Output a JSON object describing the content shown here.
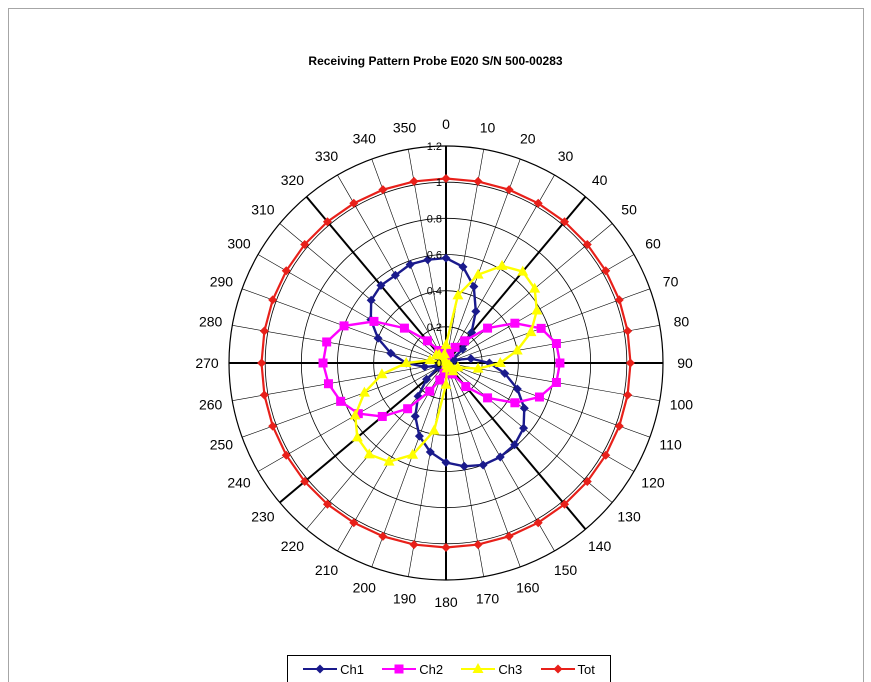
{
  "chart_data": {
    "type": "polar-line",
    "title": "Receiving Pattern Probe  E020 S/N 500-00283",
    "angle_labels": [
      "0",
      "10",
      "20",
      "30",
      "40",
      "50",
      "60",
      "70",
      "80",
      "90",
      "100",
      "110",
      "120",
      "130",
      "140",
      "150",
      "160",
      "170",
      "180",
      "190",
      "200",
      "210",
      "220",
      "230",
      "240",
      "250",
      "260",
      "270",
      "280",
      "290",
      "300",
      "310",
      "320",
      "330",
      "340",
      "350"
    ],
    "radial_tick_labels": [
      "0",
      "0.2",
      "0.4",
      "0.6",
      "0.8",
      "1",
      "1.2"
    ],
    "rlim": [
      0,
      1.2
    ],
    "angle_step_deg": 10,
    "legend_position": "bottom",
    "series": [
      {
        "name": "Ch1",
        "color": "#1a1a8c",
        "marker": "diamond",
        "angles": [
          0,
          10,
          20,
          30,
          40,
          50,
          60,
          70,
          80,
          90,
          100,
          110,
          120,
          130,
          140,
          150,
          160,
          170,
          180,
          190,
          200,
          210,
          220,
          230,
          240,
          250,
          260,
          270,
          280,
          290,
          300,
          310,
          320,
          330,
          340,
          350
        ],
        "values": [
          0.58,
          0.54,
          0.45,
          0.33,
          0.22,
          0.12,
          0.04,
          0.05,
          0.14,
          0.24,
          0.33,
          0.42,
          0.5,
          0.56,
          0.59,
          0.6,
          0.6,
          0.58,
          0.55,
          0.5,
          0.43,
          0.34,
          0.24,
          0.14,
          0.05,
          0.05,
          0.12,
          0.22,
          0.31,
          0.4,
          0.48,
          0.54,
          0.56,
          0.56,
          0.58,
          0.58
        ]
      },
      {
        "name": "Ch2",
        "color": "#ff00ff",
        "marker": "square",
        "angles": [
          0,
          10,
          20,
          30,
          40,
          50,
          60,
          70,
          80,
          90,
          100,
          110,
          120,
          130,
          140,
          150,
          160,
          170,
          180,
          190,
          200,
          210,
          220,
          230,
          240,
          250,
          260,
          270,
          280,
          290,
          300,
          310,
          320,
          330,
          340,
          350
        ],
        "values": [
          0.04,
          0.05,
          0.06,
          0.1,
          0.16,
          0.3,
          0.44,
          0.56,
          0.62,
          0.63,
          0.62,
          0.55,
          0.44,
          0.3,
          0.17,
          0.07,
          0.04,
          0.03,
          0.04,
          0.06,
          0.1,
          0.18,
          0.33,
          0.46,
          0.56,
          0.62,
          0.66,
          0.68,
          0.67,
          0.6,
          0.46,
          0.3,
          0.16,
          0.08,
          0.05,
          0.04
        ]
      },
      {
        "name": "Ch3",
        "color": "#ffff00",
        "marker": "triangle",
        "angles": [
          0,
          10,
          20,
          30,
          40,
          50,
          60,
          70,
          80,
          90,
          100,
          110,
          120,
          130,
          140,
          150,
          160,
          170,
          180,
          190,
          200,
          210,
          220,
          230,
          240,
          250,
          260,
          270,
          280,
          290,
          300,
          310,
          320,
          330,
          340,
          350
        ],
        "values": [
          0.1,
          0.38,
          0.52,
          0.62,
          0.66,
          0.64,
          0.58,
          0.5,
          0.4,
          0.3,
          0.18,
          0.07,
          0.02,
          0.04,
          0.06,
          0.03,
          0.01,
          0.03,
          0.12,
          0.38,
          0.54,
          0.63,
          0.66,
          0.64,
          0.58,
          0.48,
          0.36,
          0.22,
          0.09,
          0.02,
          0.03,
          0.07,
          0.06,
          0.03,
          0.02,
          0.05
        ]
      },
      {
        "name": "Tot",
        "color": "#e8201a",
        "marker": "diamond",
        "angles": [
          0,
          10,
          20,
          30,
          40,
          50,
          60,
          70,
          80,
          90,
          100,
          110,
          120,
          130,
          140,
          150,
          160,
          170,
          180,
          190,
          200,
          210,
          220,
          230,
          240,
          250,
          260,
          270,
          280,
          290,
          300,
          310,
          320,
          330,
          340,
          350
        ],
        "values": [
          1.02,
          1.02,
          1.02,
          1.02,
          1.02,
          1.02,
          1.02,
          1.02,
          1.02,
          1.02,
          1.02,
          1.02,
          1.02,
          1.02,
          1.02,
          1.02,
          1.02,
          1.02,
          1.02,
          1.02,
          1.02,
          1.02,
          1.02,
          1.02,
          1.02,
          1.02,
          1.02,
          1.02,
          1.02,
          1.02,
          1.02,
          1.02,
          1.02,
          1.02,
          1.02,
          1.02
        ]
      }
    ]
  }
}
